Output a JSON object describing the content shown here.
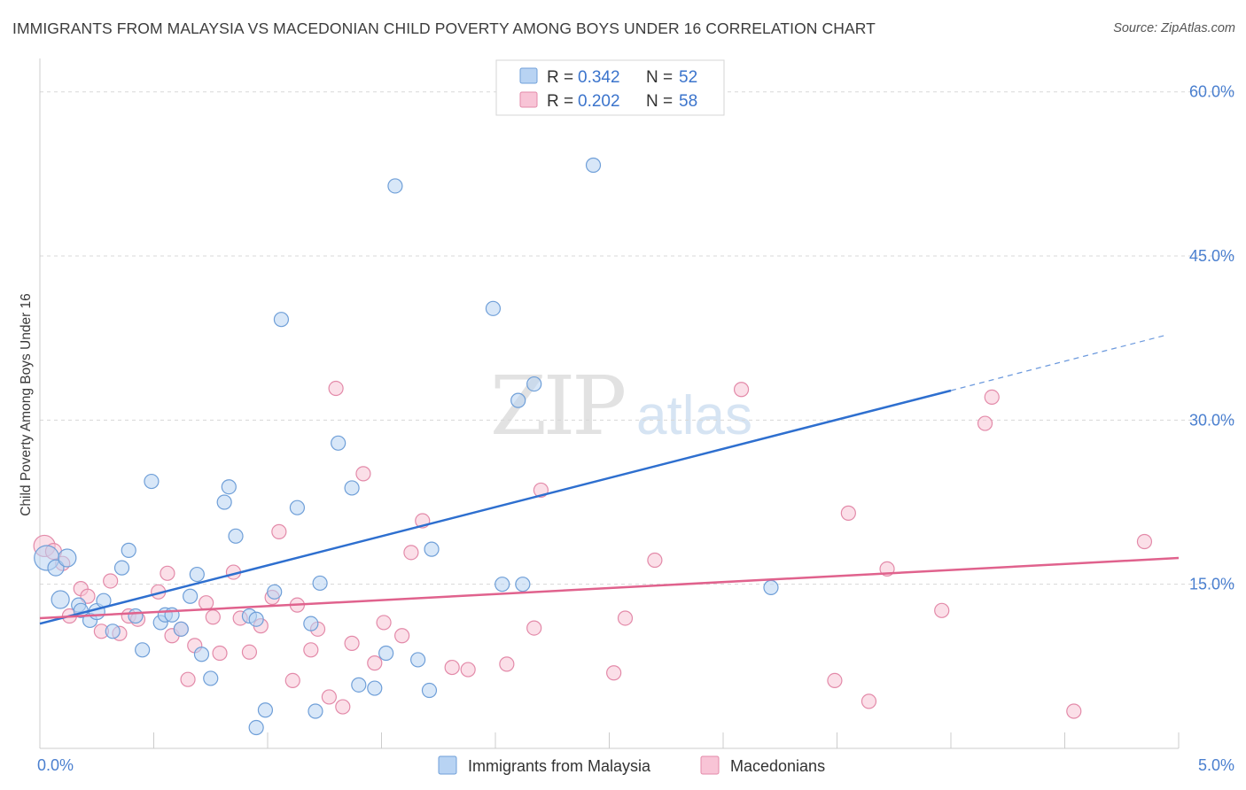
{
  "title": "IMMIGRANTS FROM MALAYSIA VS MACEDONIAN CHILD POVERTY AMONG BOYS UNDER 16 CORRELATION CHART",
  "source": "Source: ZipAtlas.com",
  "watermark": {
    "zip": "ZIP",
    "atlas": "atlas"
  },
  "colors": {
    "blue_fill": "#b8d3f3",
    "blue_stroke": "#6f9fd8",
    "blue_line": "#2e6fcf",
    "pink_fill": "#f8c4d6",
    "pink_stroke": "#e38aa9",
    "pink_line": "#e0628d",
    "tick_text": "#4a7fcf",
    "grid": "#d8d8d8"
  },
  "legend": {
    "rows": [
      {
        "r_label": "R =",
        "r_value": "0.342",
        "n_label": "N =",
        "n_value": "52"
      },
      {
        "r_label": "R =",
        "r_value": "0.202",
        "n_label": "N =",
        "n_value": "58"
      }
    ]
  },
  "chart_data": {
    "type": "scatter",
    "title": "IMMIGRANTS FROM MALAYSIA VS MACEDONIAN CHILD POVERTY AMONG BOYS UNDER 16 CORRELATION CHART",
    "xlabel": "",
    "ylabel": "Child Poverty Among Boys Under 16",
    "xlim": [
      0,
      5
    ],
    "ylim": [
      0,
      62
    ],
    "x_tick_labels": [
      {
        "value": 0,
        "label": "0.0%"
      },
      {
        "value": 5,
        "label": "5.0%"
      }
    ],
    "y_tick_labels": [
      {
        "value": 15,
        "label": "15.0%"
      },
      {
        "value": 30,
        "label": "30.0%"
      },
      {
        "value": 45,
        "label": "45.0%"
      },
      {
        "value": 60,
        "label": "60.0%"
      }
    ],
    "series": [
      {
        "name": "Immigrants from Malaysia",
        "color": "blue",
        "trend": {
          "x0": 0,
          "y0": 11.4,
          "x1": 4.0,
          "y1": 32.7,
          "dash_to_x": 4.95,
          "dash_to_y": 37.8
        },
        "points": [
          [
            0.03,
            17.4,
            14
          ],
          [
            0.07,
            16.5,
            9
          ],
          [
            0.09,
            13.6,
            10
          ],
          [
            0.12,
            17.4,
            10
          ],
          [
            0.17,
            13.1,
            8
          ],
          [
            0.18,
            12.6,
            8
          ],
          [
            0.22,
            11.7,
            8
          ],
          [
            0.25,
            12.5,
            9
          ],
          [
            0.28,
            13.5,
            8
          ],
          [
            0.32,
            10.7,
            8
          ],
          [
            0.36,
            16.5,
            8
          ],
          [
            0.39,
            18.1,
            8
          ],
          [
            0.42,
            12.1,
            8
          ],
          [
            0.45,
            9.0,
            8
          ],
          [
            0.49,
            24.4,
            8
          ],
          [
            0.53,
            11.5,
            8
          ],
          [
            0.55,
            12.2,
            8
          ],
          [
            0.58,
            12.2,
            8
          ],
          [
            0.62,
            10.9,
            8
          ],
          [
            0.66,
            13.9,
            8
          ],
          [
            0.69,
            15.9,
            8
          ],
          [
            0.71,
            8.6,
            8
          ],
          [
            0.75,
            6.4,
            8
          ],
          [
            0.81,
            22.5,
            8
          ],
          [
            0.83,
            23.9,
            8
          ],
          [
            0.86,
            19.4,
            8
          ],
          [
            0.92,
            12.1,
            8
          ],
          [
            0.95,
            11.8,
            8
          ],
          [
            0.99,
            3.5,
            8
          ],
          [
            0.95,
            1.9,
            8
          ],
          [
            1.03,
            14.3,
            8
          ],
          [
            1.06,
            39.2,
            8
          ],
          [
            1.13,
            22.0,
            8
          ],
          [
            1.19,
            11.4,
            8
          ],
          [
            1.21,
            3.4,
            8
          ],
          [
            1.23,
            15.1,
            8
          ],
          [
            1.31,
            27.9,
            8
          ],
          [
            1.37,
            23.8,
            8
          ],
          [
            1.4,
            5.8,
            8
          ],
          [
            1.47,
            5.5,
            8
          ],
          [
            1.52,
            8.7,
            8
          ],
          [
            1.56,
            51.4,
            8
          ],
          [
            1.66,
            8.1,
            8
          ],
          [
            1.71,
            5.3,
            8
          ],
          [
            1.72,
            18.2,
            8
          ],
          [
            1.99,
            40.2,
            8
          ],
          [
            2.03,
            15.0,
            8
          ],
          [
            2.1,
            31.8,
            8
          ],
          [
            2.12,
            15.0,
            8
          ],
          [
            2.17,
            33.3,
            8
          ],
          [
            2.43,
            53.3,
            8
          ],
          [
            3.21,
            14.7,
            8
          ]
        ]
      },
      {
        "name": "Macedonians",
        "color": "pink",
        "trend": {
          "x0": 0,
          "y0": 11.9,
          "x1": 5.0,
          "y1": 17.4
        },
        "points": [
          [
            0.02,
            18.5,
            12
          ],
          [
            0.06,
            18.0,
            9
          ],
          [
            0.1,
            16.9,
            8
          ],
          [
            0.13,
            12.1,
            8
          ],
          [
            0.18,
            14.6,
            8
          ],
          [
            0.21,
            13.9,
            8
          ],
          [
            0.27,
            10.7,
            8
          ],
          [
            0.31,
            15.3,
            8
          ],
          [
            0.35,
            10.5,
            8
          ],
          [
            0.39,
            12.1,
            8
          ],
          [
            0.43,
            11.8,
            8
          ],
          [
            0.52,
            14.3,
            8
          ],
          [
            0.56,
            16.0,
            8
          ],
          [
            0.58,
            10.3,
            8
          ],
          [
            0.62,
            10.9,
            8
          ],
          [
            0.65,
            6.3,
            8
          ],
          [
            0.68,
            9.4,
            8
          ],
          [
            0.73,
            13.3,
            8
          ],
          [
            0.76,
            12.0,
            8
          ],
          [
            0.79,
            8.7,
            8
          ],
          [
            0.85,
            16.1,
            8
          ],
          [
            0.88,
            11.9,
            8
          ],
          [
            0.92,
            8.8,
            8
          ],
          [
            0.97,
            11.2,
            8
          ],
          [
            1.02,
            13.8,
            8
          ],
          [
            1.05,
            19.8,
            8
          ],
          [
            1.11,
            6.2,
            8
          ],
          [
            1.13,
            13.1,
            8
          ],
          [
            1.19,
            9.0,
            8
          ],
          [
            1.22,
            10.9,
            8
          ],
          [
            1.27,
            4.7,
            8
          ],
          [
            1.3,
            32.9,
            8
          ],
          [
            1.33,
            3.8,
            8
          ],
          [
            1.37,
            9.6,
            8
          ],
          [
            1.42,
            25.1,
            8
          ],
          [
            1.47,
            7.8,
            8
          ],
          [
            1.51,
            11.5,
            8
          ],
          [
            1.59,
            10.3,
            8
          ],
          [
            1.63,
            17.9,
            8
          ],
          [
            1.68,
            20.8,
            8
          ],
          [
            1.81,
            7.4,
            8
          ],
          [
            1.88,
            7.2,
            8
          ],
          [
            2.05,
            7.7,
            8
          ],
          [
            2.17,
            11.0,
            8
          ],
          [
            2.2,
            23.6,
            8
          ],
          [
            2.52,
            6.9,
            8
          ],
          [
            2.57,
            11.9,
            8
          ],
          [
            2.7,
            17.2,
            8
          ],
          [
            3.08,
            32.8,
            8
          ],
          [
            3.49,
            6.2,
            8
          ],
          [
            3.55,
            21.5,
            8
          ],
          [
            3.64,
            4.3,
            8
          ],
          [
            3.72,
            16.4,
            8
          ],
          [
            3.96,
            12.6,
            8
          ],
          [
            4.15,
            29.7,
            8
          ],
          [
            4.18,
            32.1,
            8
          ],
          [
            4.54,
            3.4,
            8
          ],
          [
            4.85,
            18.9,
            8
          ]
        ]
      }
    ],
    "legend_labels": [
      "Immigrants from Malaysia",
      "Macedonians"
    ]
  }
}
